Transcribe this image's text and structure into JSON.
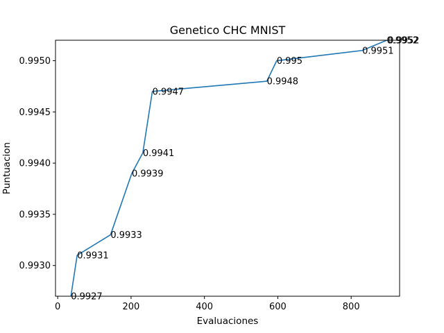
{
  "chart_data": {
    "type": "line",
    "title": "Genetico CHC MNIST",
    "xlabel": "Evaluaciones",
    "ylabel": "Puntuacion",
    "xlim": [
      -6,
      932
    ],
    "ylim": [
      0.9927,
      0.9952
    ],
    "xticks": [
      0,
      200,
      400,
      600,
      800
    ],
    "yticks": [
      0.993,
      0.9935,
      0.994,
      0.9945,
      0.995
    ],
    "ytick_labels": [
      "0.9930",
      "0.9935",
      "0.9940",
      "0.9945",
      "0.9950"
    ],
    "grid": false,
    "line_color": "#1f77b4",
    "x": [
      36,
      53,
      144,
      202,
      232,
      258,
      570,
      597,
      830,
      897,
      900
    ],
    "y": [
      0.9927,
      0.9931,
      0.9933,
      0.9939,
      0.9941,
      0.9947,
      0.9948,
      0.995,
      0.9951,
      0.9952,
      0.9952
    ],
    "point_labels": [
      "0.9927",
      "0.9931",
      "0.9933",
      "0.9939",
      "0.9941",
      "0.9947",
      "0.9948",
      "0.995",
      "0.9951",
      "0.9952",
      "0.9952"
    ]
  }
}
